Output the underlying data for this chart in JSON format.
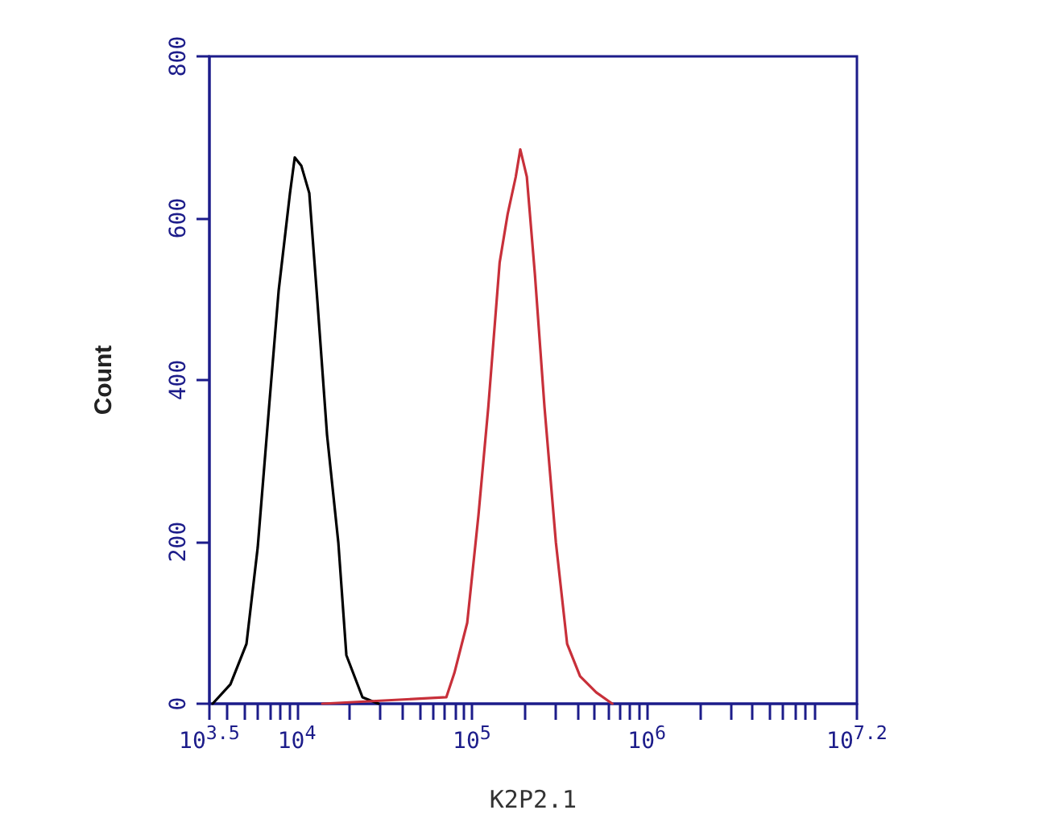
{
  "chart_data": {
    "type": "line",
    "xlabel": "K2P2.1",
    "ylabel": "Count",
    "log": "x",
    "xlim": [
      3162.28,
      15848932
    ],
    "ylim": [
      0,
      800
    ],
    "xticks": [
      {
        "value": 3162.28,
        "label": "10$^{3.5}$"
      },
      {
        "value": 4000,
        "label": null
      },
      {
        "value": 5000,
        "label": null
      },
      {
        "value": 6000,
        "label": null
      },
      {
        "value": 7000,
        "label": null
      },
      {
        "value": 8000,
        "label": null
      },
      {
        "value": 9000,
        "label": null
      },
      {
        "value": 10000,
        "label": "10$^{4}$"
      },
      {
        "value": 20000,
        "label": null
      },
      {
        "value": 30000,
        "label": null
      },
      {
        "value": 40000,
        "label": null
      },
      {
        "value": 50000,
        "label": null
      },
      {
        "value": 60000,
        "label": null
      },
      {
        "value": 70000,
        "label": null
      },
      {
        "value": 80000,
        "label": null
      },
      {
        "value": 90000,
        "label": null
      },
      {
        "value": 100000,
        "label": "10$^{5}$"
      },
      {
        "value": 200000,
        "label": null
      },
      {
        "value": 300000,
        "label": null
      },
      {
        "value": 400000,
        "label": null
      },
      {
        "value": 500000,
        "label": null
      },
      {
        "value": 600000,
        "label": null
      },
      {
        "value": 700000,
        "label": null
      },
      {
        "value": 800000,
        "label": null
      },
      {
        "value": 900000,
        "label": null
      },
      {
        "value": 1000000,
        "label": "10$^{6}$"
      },
      {
        "value": 2000000,
        "label": null
      },
      {
        "value": 3000000,
        "label": null
      },
      {
        "value": 4000000,
        "label": null
      },
      {
        "value": 5000000,
        "label": null
      },
      {
        "value": 6000000,
        "label": null
      },
      {
        "value": 7000000,
        "label": null
      },
      {
        "value": 8000000,
        "label": null
      },
      {
        "value": 9000000,
        "label": null
      },
      {
        "value": 15848932,
        "label": "10$^{7.2}$"
      }
    ],
    "yticks": [
      0,
      200,
      400,
      600,
      800
    ],
    "grid": false,
    "marker": "none",
    "line_style": "solid",
    "series": [
      {
        "color": "#000000",
        "x": [
          3300,
          4170,
          5150,
          5970,
          6930,
          7870,
          9130,
          9720,
          10590,
          11770,
          13090,
          14870,
          17250,
          19170,
          23700,
          29300
        ],
        "values": [
          0,
          24,
          74,
          193,
          366,
          511,
          631,
          675,
          665,
          631,
          498,
          332,
          199,
          60,
          8,
          0
        ]
      },
      {
        "color": "#c8303a",
        "x": [
          13960,
          71400,
          79400,
          94000,
          109000,
          124000,
          144000,
          160000,
          178000,
          189000,
          206000,
          229000,
          260000,
          302000,
          350000,
          415000,
          513000,
          634000
        ],
        "values": [
          0,
          8,
          38,
          100,
          233,
          366,
          545,
          605,
          651,
          685,
          651,
          531,
          366,
          199,
          74,
          34,
          14,
          0
        ]
      }
    ]
  }
}
